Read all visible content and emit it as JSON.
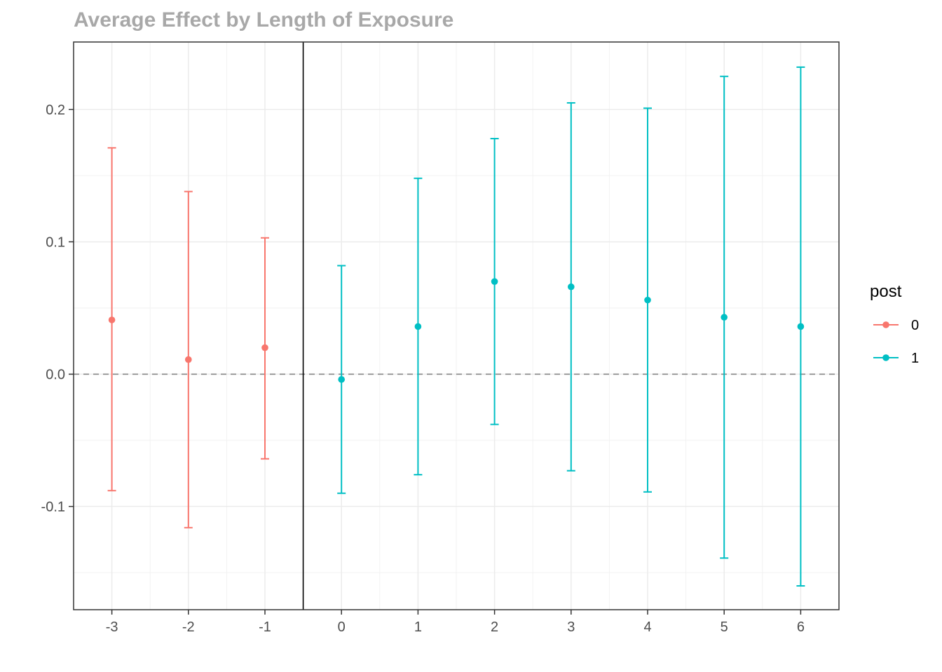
{
  "chart_data": {
    "type": "scatter",
    "title": "Average Effect by Length of Exposure",
    "xlabel": "",
    "ylabel": "",
    "x_ticks": [
      -3,
      -2,
      -1,
      0,
      1,
      2,
      3,
      4,
      5,
      6
    ],
    "y_ticks": [
      -0.1,
      0.0,
      0.1,
      0.2
    ],
    "x_tick_labels": [
      "-3",
      "-2",
      "-1",
      "0",
      "1",
      "2",
      "3",
      "4",
      "5",
      "6"
    ],
    "y_tick_labels": [
      "-0.1",
      "0.0",
      "0.1",
      "0.2"
    ],
    "xlim": [
      -3.5,
      6.5
    ],
    "ylim": [
      -0.178,
      0.251
    ],
    "grid": true,
    "reference_lines": {
      "horizontal_dashed_at_y": 0.0,
      "vertical_solid_at_x": -0.5
    },
    "legend": {
      "title": "post",
      "placement": "right"
    },
    "series": [
      {
        "name": "0",
        "color": "#F8766D",
        "points": [
          {
            "x": -3,
            "y": 0.041,
            "lower": -0.088,
            "upper": 0.171
          },
          {
            "x": -2,
            "y": 0.011,
            "lower": -0.116,
            "upper": 0.138
          },
          {
            "x": -1,
            "y": 0.02,
            "lower": -0.064,
            "upper": 0.103
          }
        ]
      },
      {
        "name": "1",
        "color": "#00BFC4",
        "points": [
          {
            "x": 0,
            "y": -0.004,
            "lower": -0.09,
            "upper": 0.082
          },
          {
            "x": 1,
            "y": 0.036,
            "lower": -0.076,
            "upper": 0.148
          },
          {
            "x": 2,
            "y": 0.07,
            "lower": -0.038,
            "upper": 0.178
          },
          {
            "x": 3,
            "y": 0.066,
            "lower": -0.073,
            "upper": 0.205
          },
          {
            "x": 4,
            "y": 0.056,
            "lower": -0.089,
            "upper": 0.201
          },
          {
            "x": 5,
            "y": 0.043,
            "lower": -0.139,
            "upper": 0.225
          },
          {
            "x": 6,
            "y": 0.036,
            "lower": -0.16,
            "upper": 0.232
          }
        ]
      }
    ]
  }
}
